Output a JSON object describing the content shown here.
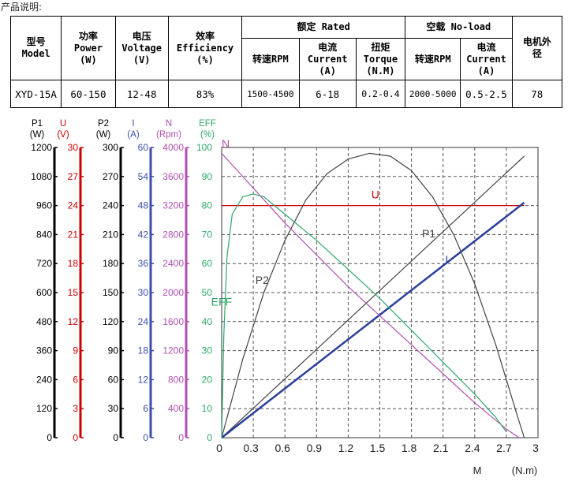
{
  "caption": "产品说明:",
  "table": {
    "model_header": [
      "型号",
      "Model"
    ],
    "power_header": [
      "功率",
      "Power",
      "(W)"
    ],
    "voltage_header": [
      "电压",
      "Voltage",
      "(V)"
    ],
    "efficiency_header": [
      "效率",
      "Efficiency",
      "(%)"
    ],
    "rated_group": "额定 Rated",
    "noload_group": "空载 No-load",
    "motor_diameter_header": [
      "电机外",
      "径"
    ],
    "rated_speed_header": "转速RPM",
    "rated_current_header": [
      "电流",
      "Current",
      "(A)"
    ],
    "rated_torque_header": [
      "扭矩",
      "Torque",
      "(N.M)"
    ],
    "noload_speed_header": "转速RPM",
    "noload_current_header": [
      "电流",
      "Current",
      "(A)"
    ],
    "row": {
      "model": "XYD-15A",
      "power": "60-150",
      "voltage": "12-48",
      "efficiency": "83%",
      "rated_speed": "1500-4500",
      "rated_current": "6-18",
      "rated_torque": "0.2-0.4",
      "noload_speed": "2000-5000",
      "noload_current": "0.5-2.5",
      "diameter": "78"
    }
  },
  "chart_data": {
    "type": "line",
    "xlabel": "M",
    "xunit": "(N.m)",
    "x_ticks": [
      "0",
      "0.3",
      "0.6",
      "0.9",
      "1.2",
      "1.5",
      "1.8",
      "2.1",
      "2.4",
      "2.7",
      "3"
    ],
    "xlim": [
      0,
      3
    ],
    "axes": [
      {
        "name": "P1",
        "unit": "(W)",
        "color": "#000000",
        "ticks": [
          "1200",
          "1080",
          "960",
          "840",
          "720",
          "600",
          "480",
          "360",
          "240",
          "120",
          "0"
        ]
      },
      {
        "name": "U",
        "unit": "(V)",
        "color": "#cc0000",
        "ticks": [
          "30",
          "27",
          "24",
          "21",
          "18",
          "15",
          "12",
          "9",
          "6",
          "3",
          "0"
        ]
      },
      {
        "name": "P2",
        "unit": "(W)",
        "color": "#000000",
        "ticks": [
          "300",
          "270",
          "240",
          "210",
          "180",
          "150",
          "120",
          "90",
          "60",
          "30",
          "0"
        ]
      },
      {
        "name": "I",
        "unit": "(A)",
        "color": "#3b4fa8",
        "ticks": [
          "60",
          "54",
          "48",
          "42",
          "36",
          "30",
          "24",
          "18",
          "12",
          "6",
          "0"
        ]
      },
      {
        "name": "N",
        "unit": "(Rpm)",
        "color": "#b050b0",
        "ticks": [
          "4000",
          "3600",
          "3200",
          "2800",
          "2400",
          "2000",
          "1600",
          "1200",
          "800",
          "400",
          "0"
        ]
      },
      {
        "name": "EFF",
        "unit": "(%)",
        "color": "#2fa86a",
        "ticks": [
          "100",
          "90",
          "80",
          "70",
          "60",
          "50",
          "40",
          "30",
          "20",
          "10",
          "0"
        ]
      }
    ],
    "series": [
      {
        "name": "U",
        "color": "#cc0000",
        "label_pos": [
          1.42,
          82.5
        ],
        "points": [
          [
            0,
            80
          ],
          [
            2.87,
            80
          ]
        ]
      },
      {
        "name": "P1",
        "color": "#444444",
        "label_pos": [
          1.9,
          69
        ],
        "points": [
          [
            0,
            0
          ],
          [
            2.87,
            97
          ]
        ]
      },
      {
        "name": "I",
        "color": "#2a3f9a",
        "label_pos": [
          2.12,
          60
        ],
        "points": [
          [
            0,
            0
          ],
          [
            2.87,
            81
          ]
        ]
      },
      {
        "name": "P2",
        "color": "#444444",
        "label_pos": [
          0.32,
          53
        ],
        "points": [
          [
            0,
            0
          ],
          [
            0.2,
            27
          ],
          [
            0.4,
            50
          ],
          [
            0.6,
            68
          ],
          [
            0.8,
            82
          ],
          [
            1.0,
            91
          ],
          [
            1.2,
            96
          ],
          [
            1.4,
            98
          ],
          [
            1.6,
            97
          ],
          [
            1.8,
            92
          ],
          [
            2.0,
            83
          ],
          [
            2.2,
            70
          ],
          [
            2.4,
            53
          ],
          [
            2.6,
            32
          ],
          [
            2.8,
            8
          ],
          [
            2.87,
            0
          ]
        ]
      },
      {
        "name": "N",
        "color": "#b050b0",
        "label_pos": [
          0,
          100
        ],
        "points": [
          [
            0,
            98
          ],
          [
            0.3,
            86
          ],
          [
            0.6,
            74
          ],
          [
            0.9,
            63
          ],
          [
            1.2,
            52
          ],
          [
            1.5,
            42
          ],
          [
            1.8,
            32
          ],
          [
            2.1,
            22
          ],
          [
            2.4,
            12
          ],
          [
            2.7,
            3
          ],
          [
            2.82,
            0
          ]
        ]
      },
      {
        "name": "EFF",
        "color": "#2fa86a",
        "label_pos": [
          -0.1,
          45.5
        ],
        "points": [
          [
            0,
            0
          ],
          [
            0.02,
            35
          ],
          [
            0.05,
            62
          ],
          [
            0.1,
            77
          ],
          [
            0.2,
            83
          ],
          [
            0.3,
            84
          ],
          [
            0.4,
            83
          ],
          [
            0.6,
            77
          ],
          [
            0.9,
            68
          ],
          [
            1.2,
            58
          ],
          [
            1.5,
            48
          ],
          [
            1.8,
            37
          ],
          [
            2.1,
            26
          ],
          [
            2.4,
            15
          ],
          [
            2.6,
            7
          ],
          [
            2.7,
            2
          ]
        ]
      }
    ]
  }
}
